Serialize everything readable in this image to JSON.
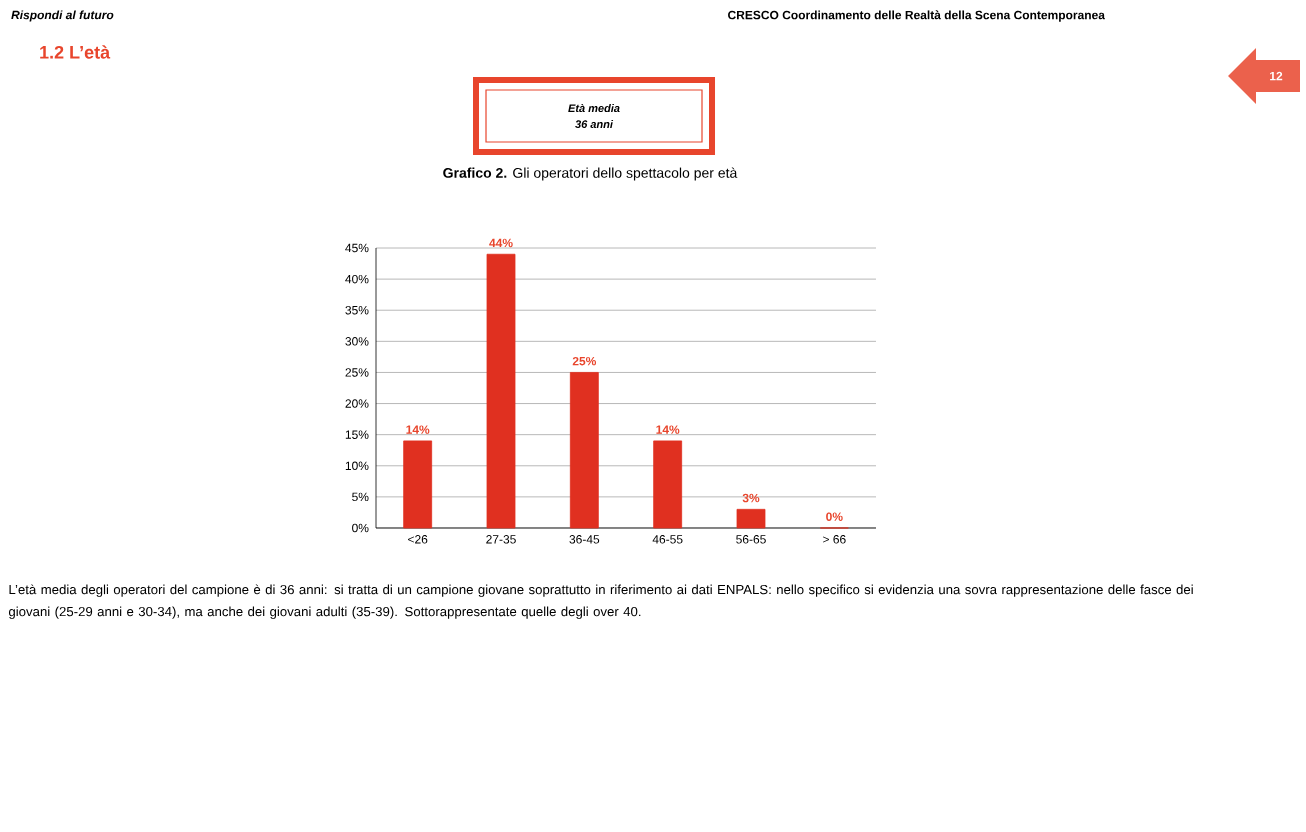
{
  "chart_data": {
    "type": "bar",
    "title": "**Grafico 2.** Gli operatori dello spettacolo per età",
    "categories": [
      "<26",
      "27-35",
      "36-45",
      "46-55",
      "56-65",
      "> 66"
    ],
    "values": [
      14,
      44,
      25,
      14,
      3,
      0
    ],
    "color": "#e03020",
    "ylim": [
      0,
      45
    ],
    "yticks": [
      {
        "value": 0,
        "label": "0%"
      },
      {
        "value": 5,
        "label": "5%"
      },
      {
        "value": 10,
        "label": "10%"
      },
      {
        "value": 15,
        "label": "15%"
      },
      {
        "value": 20,
        "label": "20%"
      },
      {
        "value": 25,
        "label": "25%"
      },
      {
        "value": 30,
        "label": "30%"
      },
      {
        "value": 35,
        "label": "35%"
      },
      {
        "value": 40,
        "label": "40%"
      },
      {
        "value": 45,
        "label": "45%"
      }
    ],
    "value_labels": [
      "14%",
      "44%",
      "25%",
      "14%",
      "3%",
      "0%"
    ],
    "grid": "y",
    "annotations": [
      "Rispondi al futuro",
      "CRESCO Coordinamento delle Realtà della Scena Contemporanea",
      "1.2 L’età",
      "12",
      "Età media",
      "36 anni",
      "L’età media degli operatori del campione è di 36 anni: si tratta di un campione giovane soprattutto in riferimento ai dati ENPALS: nello specifico si evidenzia una sovra rappresentazione delle fasce dei giovani (25-29 anni e 30-34), ma anche dei giovani adulti (35-39). Sottorappresentate quelle degli over 40."
    ]
  }
}
